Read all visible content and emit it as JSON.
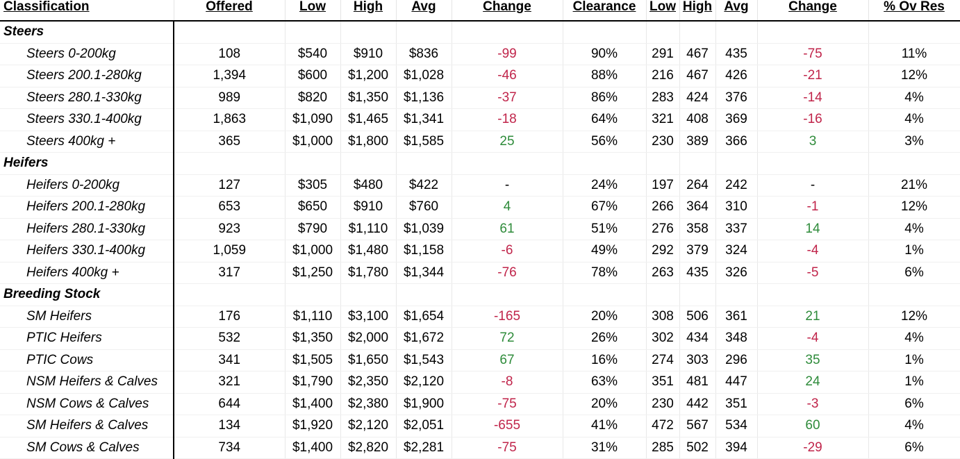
{
  "headers": [
    "Classification",
    "Offered",
    "Low",
    "High",
    "Avg",
    "Change",
    "Clearance",
    "Low",
    "High",
    "Avg",
    "Change",
    "% Ov Res"
  ],
  "colors": {
    "negative": "#c0244a",
    "positive": "#2e8b3a"
  },
  "groups": [
    {
      "name": "Steers",
      "rows": [
        {
          "cls": "Steers 0-200kg",
          "offered": "108",
          "low": "$540",
          "high": "$910",
          "avg": "$836",
          "change": "-99",
          "change_dir": "neg",
          "clearance": "90%",
          "low2": "291",
          "high2": "467",
          "avg2": "435",
          "change2": "-75",
          "change2_dir": "neg",
          "ovres": "11%"
        },
        {
          "cls": "Steers 200.1-280kg",
          "offered": "1,394",
          "low": "$600",
          "high": "$1,200",
          "avg": "$1,028",
          "change": "-46",
          "change_dir": "neg",
          "clearance": "88%",
          "low2": "216",
          "high2": "467",
          "avg2": "426",
          "change2": "-21",
          "change2_dir": "neg",
          "ovres": "12%"
        },
        {
          "cls": "Steers 280.1-330kg",
          "offered": "989",
          "low": "$820",
          "high": "$1,350",
          "avg": "$1,136",
          "change": "-37",
          "change_dir": "neg",
          "clearance": "86%",
          "low2": "283",
          "high2": "424",
          "avg2": "376",
          "change2": "-14",
          "change2_dir": "neg",
          "ovres": "4%"
        },
        {
          "cls": "Steers 330.1-400kg",
          "offered": "1,863",
          "low": "$1,090",
          "high": "$1,465",
          "avg": "$1,341",
          "change": "-18",
          "change_dir": "neg",
          "clearance": "64%",
          "low2": "321",
          "high2": "408",
          "avg2": "369",
          "change2": "-16",
          "change2_dir": "neg",
          "ovres": "4%"
        },
        {
          "cls": "Steers 400kg +",
          "offered": "365",
          "low": "$1,000",
          "high": "$1,800",
          "avg": "$1,585",
          "change": "25",
          "change_dir": "pos",
          "clearance": "56%",
          "low2": "230",
          "high2": "389",
          "avg2": "366",
          "change2": "3",
          "change2_dir": "pos",
          "ovres": "3%"
        }
      ]
    },
    {
      "name": "Heifers",
      "rows": [
        {
          "cls": "Heifers 0-200kg",
          "offered": "127",
          "low": "$305",
          "high": "$480",
          "avg": "$422",
          "change": "-",
          "change_dir": "neu",
          "clearance": "24%",
          "low2": "197",
          "high2": "264",
          "avg2": "242",
          "change2": "-",
          "change2_dir": "neu",
          "ovres": "21%"
        },
        {
          "cls": "Heifers 200.1-280kg",
          "offered": "653",
          "low": "$650",
          "high": "$910",
          "avg": "$760",
          "change": "4",
          "change_dir": "pos",
          "clearance": "67%",
          "low2": "266",
          "high2": "364",
          "avg2": "310",
          "change2": "-1",
          "change2_dir": "neg",
          "ovres": "12%"
        },
        {
          "cls": "Heifers 280.1-330kg",
          "offered": "923",
          "low": "$790",
          "high": "$1,110",
          "avg": "$1,039",
          "change": "61",
          "change_dir": "pos",
          "clearance": "51%",
          "low2": "276",
          "high2": "358",
          "avg2": "337",
          "change2": "14",
          "change2_dir": "pos",
          "ovres": "4%"
        },
        {
          "cls": "Heifers 330.1-400kg",
          "offered": "1,059",
          "low": "$1,000",
          "high": "$1,480",
          "avg": "$1,158",
          "change": "-6",
          "change_dir": "neg",
          "clearance": "49%",
          "low2": "292",
          "high2": "379",
          "avg2": "324",
          "change2": "-4",
          "change2_dir": "neg",
          "ovres": "1%"
        },
        {
          "cls": "Heifers 400kg +",
          "offered": "317",
          "low": "$1,250",
          "high": "$1,780",
          "avg": "$1,344",
          "change": "-76",
          "change_dir": "neg",
          "clearance": "78%",
          "low2": "263",
          "high2": "435",
          "avg2": "326",
          "change2": "-5",
          "change2_dir": "neg",
          "ovres": "6%"
        }
      ]
    },
    {
      "name": "Breeding Stock",
      "rows": [
        {
          "cls": "SM Heifers",
          "offered": "176",
          "low": "$1,110",
          "high": "$3,100",
          "avg": "$1,654",
          "change": "-165",
          "change_dir": "neg",
          "clearance": "20%",
          "low2": "308",
          "high2": "506",
          "avg2": "361",
          "change2": "21",
          "change2_dir": "pos",
          "ovres": "12%"
        },
        {
          "cls": "PTIC Heifers",
          "offered": "532",
          "low": "$1,350",
          "high": "$2,000",
          "avg": "$1,672",
          "change": "72",
          "change_dir": "pos",
          "clearance": "26%",
          "low2": "302",
          "high2": "434",
          "avg2": "348",
          "change2": "-4",
          "change2_dir": "neg",
          "ovres": "4%"
        },
        {
          "cls": "PTIC Cows",
          "offered": "341",
          "low": "$1,505",
          "high": "$1,650",
          "avg": "$1,543",
          "change": "67",
          "change_dir": "pos",
          "clearance": "16%",
          "low2": "274",
          "high2": "303",
          "avg2": "296",
          "change2": "35",
          "change2_dir": "pos",
          "ovres": "1%"
        },
        {
          "cls": "NSM Heifers & Calves",
          "offered": "321",
          "low": "$1,790",
          "high": "$2,350",
          "avg": "$2,120",
          "change": "-8",
          "change_dir": "neg",
          "clearance": "63%",
          "low2": "351",
          "high2": "481",
          "avg2": "447",
          "change2": "24",
          "change2_dir": "pos",
          "ovres": "1%"
        },
        {
          "cls": "NSM Cows & Calves",
          "offered": "644",
          "low": "$1,400",
          "high": "$2,380",
          "avg": "$1,900",
          "change": "-75",
          "change_dir": "neg",
          "clearance": "20%",
          "low2": "230",
          "high2": "442",
          "avg2": "351",
          "change2": "-3",
          "change2_dir": "neg",
          "ovres": "6%"
        },
        {
          "cls": "SM Heifers & Calves",
          "offered": "134",
          "low": "$1,920",
          "high": "$2,120",
          "avg": "$2,051",
          "change": "-655",
          "change_dir": "neg",
          "clearance": "41%",
          "low2": "472",
          "high2": "567",
          "avg2": "534",
          "change2": "60",
          "change2_dir": "pos",
          "ovres": "4%"
        },
        {
          "cls": "SM Cows & Calves",
          "offered": "734",
          "low": "$1,400",
          "high": "$2,820",
          "avg": "$2,281",
          "change": "-75",
          "change_dir": "neg",
          "clearance": "31%",
          "low2": "285",
          "high2": "502",
          "avg2": "394",
          "change2": "-29",
          "change2_dir": "neg",
          "ovres": "6%"
        }
      ]
    }
  ]
}
